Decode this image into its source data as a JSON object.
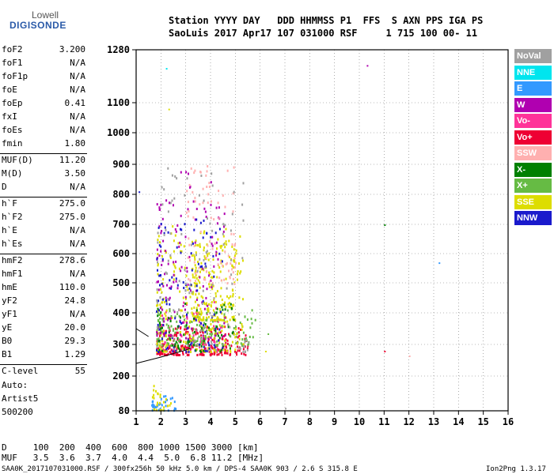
{
  "logo": {
    "line1": "Lowell",
    "line2": "DIGISONDE"
  },
  "header": {
    "line1": "Station YYYY DAY   DDD HHMMSS P1  FFS  S AXN PPS IGA PS",
    "line2": "SaoLuis 2017 Apr17 107 031000 RSF     1 715 100 00- 11"
  },
  "params": [
    {
      "label": "foF2",
      "value": "3.200"
    },
    {
      "label": "foF1",
      "value": "N/A"
    },
    {
      "label": "foF1p",
      "value": "N/A"
    },
    {
      "label": "foE",
      "value": "N/A"
    },
    {
      "label": "foEp",
      "value": "0.41"
    },
    {
      "label": "fxI",
      "value": "N/A"
    },
    {
      "label": "foEs",
      "value": "N/A"
    },
    {
      "label": "fmin",
      "value": "1.80"
    },
    {
      "label": "MUF(D)",
      "value": "11.20"
    },
    {
      "label": "M(D)",
      "value": "3.50"
    },
    {
      "label": "D",
      "value": "N/A"
    },
    {
      "label": "h`F",
      "value": "275.0"
    },
    {
      "label": "h`F2",
      "value": "275.0"
    },
    {
      "label": "h`E",
      "value": "N/A"
    },
    {
      "label": "h`Es",
      "value": "N/A"
    },
    {
      "label": "hmF2",
      "value": "278.6"
    },
    {
      "label": "hmF1",
      "value": "N/A"
    },
    {
      "label": "hmE",
      "value": "110.0"
    },
    {
      "label": "yF2",
      "value": "24.8"
    },
    {
      "label": "yF1",
      "value": "N/A"
    },
    {
      "label": "yE",
      "value": "20.0"
    },
    {
      "label": "B0",
      "value": "29.3"
    },
    {
      "label": "B1",
      "value": "1.29"
    },
    {
      "label": "C-level",
      "value": "55"
    }
  ],
  "auto": {
    "line1": "Auto:",
    "line2": "Artist5",
    "line3": "500200"
  },
  "legend": [
    {
      "label": "NoVal",
      "color": "#a0a0a0"
    },
    {
      "label": "NNE",
      "color": "#00e5ee"
    },
    {
      "label": "E",
      "color": "#3399ff"
    },
    {
      "label": "W",
      "color": "#b000b0"
    },
    {
      "label": "Vo-",
      "color": "#ff3399"
    },
    {
      "label": "Vo+",
      "color": "#ee0033"
    },
    {
      "label": "SSW",
      "color": "#ffb0b0"
    },
    {
      "label": "X-",
      "color": "#008000"
    },
    {
      "label": "X+",
      "color": "#66bb44"
    },
    {
      "label": "SSE",
      "color": "#dddd00"
    },
    {
      "label": "NNW",
      "color": "#1a1acc"
    }
  ],
  "muf_table": {
    "d_row": "D     100  200  400  600  800 1000 1500 3000 [km]",
    "muf_row": "MUF   3.5  3.6  3.7  4.0  4.4  5.0  6.8 11.2 [MHz]"
  },
  "footer": {
    "left": "SAA0K_2017107031000.RSF / 300fx256h 50 kHz 5.0 km / DPS-4 SAA0K 903 / 2.6 S 315.8 E",
    "right": "Ion2Png 1.3.17"
  },
  "chart_data": {
    "type": "scatter",
    "title": "",
    "xlabel": "",
    "ylabel": "",
    "xlim": [
      1,
      16
    ],
    "ylim": [
      80,
      1280
    ],
    "xticks": [
      1,
      2,
      3,
      4,
      5,
      6,
      7,
      8,
      9,
      10,
      11,
      12,
      13,
      14,
      15,
      16
    ],
    "yticks": [
      80,
      200,
      300,
      400,
      500,
      600,
      700,
      800,
      900,
      1000,
      1100,
      1280
    ],
    "grid": true,
    "profile_trace": {
      "color": "#000000",
      "points": [
        [
          1.0,
          240
        ],
        [
          2.0,
          260
        ],
        [
          3.0,
          282
        ],
        [
          3.2,
          288
        ]
      ]
    },
    "upper_trace": {
      "color": "#000000",
      "points": [
        [
          1.0,
          350
        ],
        [
          1.5,
          325
        ]
      ]
    },
    "clusters": [
      {
        "name": "Vo+",
        "color": "#ee0033",
        "x": [
          1.8,
          5.5
        ],
        "y": [
          270,
          360
        ],
        "density": 260
      },
      {
        "name": "Vo-",
        "color": "#ff3399",
        "x": [
          1.8,
          4.5
        ],
        "y": [
          280,
          440
        ],
        "density": 80
      },
      {
        "name": "X+",
        "color": "#66bb44",
        "x": [
          1.8,
          5.8
        ],
        "y": [
          300,
          420
        ],
        "density": 170
      },
      {
        "name": "SSE",
        "color": "#dddd00",
        "x": [
          1.8,
          5.3
        ],
        "y": [
          280,
          700
        ],
        "density": 230
      },
      {
        "name": "SSE",
        "color": "#dddd00",
        "x": [
          3.2,
          5.0
        ],
        "y": [
          380,
          650
        ],
        "density": 160
      },
      {
        "name": "W",
        "color": "#b000b0",
        "x": [
          1.8,
          4.6
        ],
        "y": [
          320,
          880
        ],
        "density": 140
      },
      {
        "name": "NNW",
        "color": "#1a1acc",
        "x": [
          1.8,
          4.5
        ],
        "y": [
          280,
          720
        ],
        "density": 110
      },
      {
        "name": "SSW",
        "color": "#ffb0b0",
        "x": [
          3.0,
          5.0
        ],
        "y": [
          500,
          900
        ],
        "density": 90
      },
      {
        "name": "X-",
        "color": "#008000",
        "x": [
          1.8,
          5.0
        ],
        "y": [
          280,
          440
        ],
        "density": 70
      },
      {
        "name": "NoVal",
        "color": "#a0a0a0",
        "x": [
          1.8,
          5.5
        ],
        "y": [
          280,
          900
        ],
        "density": 110
      },
      {
        "name": "E",
        "color": "#3399ff",
        "x": [
          1.6,
          2.6
        ],
        "y": [
          85,
          135
        ],
        "density": 30
      },
      {
        "name": "SSE",
        "color": "#dddd00",
        "x": [
          1.6,
          2.4
        ],
        "y": [
          85,
          170
        ],
        "density": 25
      }
    ],
    "outliers": [
      {
        "x": 2.2,
        "y": 1218,
        "color": "#00e5ee"
      },
      {
        "x": 2.3,
        "y": 1080,
        "color": "#dddd00"
      },
      {
        "x": 10.3,
        "y": 1228,
        "color": "#b000b0"
      },
      {
        "x": 11.0,
        "y": 700,
        "color": "#008000"
      },
      {
        "x": 13.2,
        "y": 570,
        "color": "#3399ff"
      },
      {
        "x": 11.0,
        "y": 280,
        "color": "#ee0033"
      },
      {
        "x": 12.0,
        "y": 265,
        "color": "#ffb0b0"
      },
      {
        "x": 6.3,
        "y": 335,
        "color": "#66bb44"
      },
      {
        "x": 6.2,
        "y": 280,
        "color": "#dddd00"
      },
      {
        "x": 7.0,
        "y": 90,
        "color": "#a0a0a0"
      },
      {
        "x": 1.1,
        "y": 810,
        "color": "#1a1acc"
      }
    ]
  }
}
